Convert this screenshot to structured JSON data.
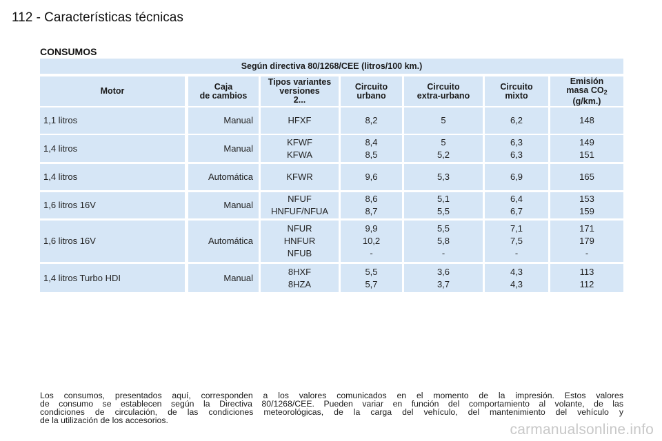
{
  "page": {
    "title": "112 - Características técnicas",
    "section_title": "CONSUMOS"
  },
  "table": {
    "directive_header": "Según directiva 80/1268/CEE (litros/100 km.)",
    "columns": [
      {
        "lines": [
          "Motor"
        ]
      },
      {
        "lines": [
          "Caja",
          "de cambios"
        ]
      },
      {
        "lines": [
          "Tipos variantes",
          "versiones",
          "2..."
        ]
      },
      {
        "lines": [
          "Circuito",
          "urbano"
        ]
      },
      {
        "lines": [
          "Circuito",
          "extra-urbano"
        ]
      },
      {
        "lines": [
          "Circuito",
          "mixto"
        ]
      },
      {
        "lines": [
          "Emisión",
          "masa CO",
          "(g/km.)"
        ],
        "co2_subscript": "2"
      }
    ],
    "rows": [
      {
        "motor": [
          "1,1 litros"
        ],
        "caja": [
          "Manual"
        ],
        "tipos": [
          "HFXF"
        ],
        "urbano": [
          "8,2"
        ],
        "extra": [
          "5"
        ],
        "mixto": [
          "6,2"
        ],
        "emision": [
          "148"
        ]
      },
      {
        "motor": [
          "1,4 litros"
        ],
        "caja": [
          "Manual"
        ],
        "tipos": [
          "KFWF",
          "KFWA"
        ],
        "urbano": [
          "8,4",
          "8,5"
        ],
        "extra": [
          "5",
          "5,2"
        ],
        "mixto": [
          "6,3",
          "6,3"
        ],
        "emision": [
          "149",
          "151"
        ]
      },
      {
        "motor": [
          "1,4 litros"
        ],
        "caja": [
          "Automática"
        ],
        "tipos": [
          "KFWR"
        ],
        "urbano": [
          "9,6"
        ],
        "extra": [
          "5,3"
        ],
        "mixto": [
          "6,9"
        ],
        "emision": [
          "165"
        ]
      },
      {
        "motor": [
          "1,6 litros 16V"
        ],
        "caja": [
          "Manual"
        ],
        "tipos": [
          "NFUF",
          "HNFUF/NFUA"
        ],
        "urbano": [
          "8,6",
          "8,7"
        ],
        "extra": [
          "5,1",
          "5,5"
        ],
        "mixto": [
          "6,4",
          "6,7"
        ],
        "emision": [
          "153",
          "159"
        ]
      },
      {
        "motor": [
          "1,6 litros 16V"
        ],
        "caja": [
          "Automática"
        ],
        "tipos": [
          "NFUR",
          "HNFUR",
          "NFUB"
        ],
        "urbano": [
          "9,9",
          "10,2",
          "-"
        ],
        "extra": [
          "5,5",
          "5,8",
          "-"
        ],
        "mixto": [
          "7,1",
          "7,5",
          "-"
        ],
        "emision": [
          "171",
          "179",
          "-"
        ]
      },
      {
        "motor": [
          "1,4 litros Turbo HDI"
        ],
        "caja": [
          "Manual"
        ],
        "tipos": [
          "8HXF",
          "8HZA"
        ],
        "urbano": [
          "5,5",
          "5,7"
        ],
        "extra": [
          "3,6",
          "3,7"
        ],
        "mixto": [
          "4,3",
          "4,3"
        ],
        "emision": [
          "113",
          "112"
        ]
      }
    ]
  },
  "footnote": {
    "lines": [
      "Los consumos, presentados aquí, corresponden a los valores comunicados en el momento de la impresión. Estos valores",
      "de consumo se establecen según la Directiva 80/1268/CEE. Pueden variar en función del comportamiento al volante, de las",
      "condiciones de circulación, de las condiciones meteorológicas, de la carga del vehículo, del mantenimiento del vehículo y",
      "de la utilización de los accesorios."
    ]
  },
  "watermark": "carmanualsonline.info",
  "colors": {
    "cell_background": "#d6e6f6",
    "watermark": "#c8c8c8"
  }
}
